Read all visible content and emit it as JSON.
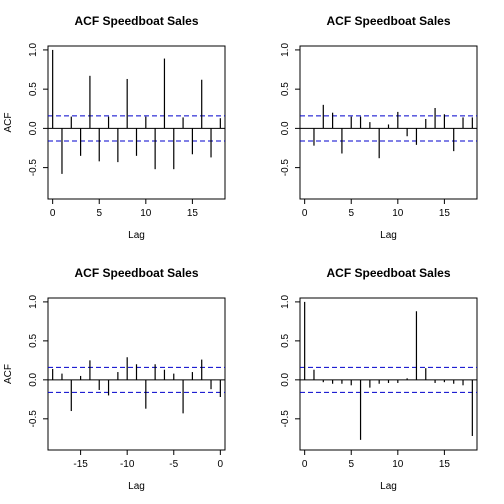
{
  "chart_data": [
    {
      "type": "bar",
      "title": "ACF Speedboat Sales",
      "xlabel": "Lag",
      "ylabel": "ACF",
      "xlim": [
        -0.5,
        18.5
      ],
      "ylim": [
        -0.9,
        1.05
      ],
      "xticks": [
        0,
        5,
        10,
        15
      ],
      "yticks": [
        -0.5,
        0.0,
        0.5,
        1.0
      ],
      "conf_limit": 0.16,
      "lags": [
        0,
        1,
        2,
        3,
        4,
        5,
        6,
        7,
        8,
        9,
        10,
        11,
        12,
        13,
        14,
        15,
        16,
        17,
        18
      ],
      "values": [
        1.0,
        -0.58,
        0.15,
        -0.35,
        0.67,
        -0.42,
        0.15,
        -0.43,
        0.63,
        -0.35,
        0.15,
        -0.52,
        0.89,
        -0.52,
        0.14,
        -0.33,
        0.62,
        -0.37,
        0.13
      ]
    },
    {
      "type": "bar",
      "title": "ACF Speedboat Sales",
      "xlabel": "Lag",
      "ylabel": "",
      "xlim": [
        -0.5,
        18.5
      ],
      "ylim": [
        -0.9,
        1.05
      ],
      "xticks": [
        0,
        5,
        10,
        15
      ],
      "yticks": [
        -0.5,
        0.0,
        0.5,
        1.0
      ],
      "conf_limit": 0.16,
      "lags": [
        1,
        2,
        3,
        4,
        5,
        6,
        7,
        8,
        9,
        10,
        11,
        12,
        13,
        14,
        15,
        16,
        17,
        18
      ],
      "values": [
        -0.22,
        0.3,
        0.2,
        -0.32,
        0.15,
        0.15,
        0.08,
        -0.38,
        0.05,
        0.21,
        -0.1,
        -0.21,
        0.12,
        0.26,
        0.18,
        -0.29,
        0.14,
        0.14
      ]
    },
    {
      "type": "bar",
      "title": "ACF Speedboat Sales",
      "xlabel": "Lag",
      "ylabel": "ACF",
      "xlim": [
        -18.5,
        0.5
      ],
      "ylim": [
        -0.9,
        1.05
      ],
      "xticks": [
        -15,
        -10,
        -5,
        0
      ],
      "yticks": [
        -0.5,
        0.0,
        0.5,
        1.0
      ],
      "conf_limit": 0.16,
      "lags": [
        -18,
        -17,
        -16,
        -15,
        -14,
        -13,
        -12,
        -11,
        -10,
        -9,
        -8,
        -7,
        -6,
        -5,
        -4,
        -3,
        -2,
        -1,
        0
      ],
      "values": [
        0.14,
        0.08,
        -0.4,
        0.05,
        0.25,
        -0.13,
        -0.2,
        0.1,
        0.29,
        0.2,
        -0.37,
        0.2,
        0.13,
        0.08,
        -0.43,
        0.1,
        0.26,
        -0.12,
        -0.22
      ]
    },
    {
      "type": "bar",
      "title": "ACF Speedboat Sales",
      "xlabel": "Lag",
      "ylabel": "",
      "xlim": [
        -0.5,
        18.5
      ],
      "ylim": [
        -0.9,
        1.05
      ],
      "xticks": [
        0,
        5,
        10,
        15
      ],
      "yticks": [
        -0.5,
        0.0,
        0.5,
        1.0
      ],
      "conf_limit": 0.16,
      "lags": [
        0,
        1,
        2,
        3,
        4,
        5,
        6,
        7,
        8,
        9,
        10,
        11,
        12,
        13,
        14,
        15,
        16,
        17,
        18
      ],
      "values": [
        1.0,
        0.13,
        -0.03,
        -0.05,
        -0.05,
        -0.07,
        -0.77,
        -0.1,
        -0.05,
        -0.04,
        -0.04,
        0.02,
        0.88,
        0.15,
        -0.04,
        -0.03,
        -0.05,
        -0.07,
        -0.72
      ]
    }
  ],
  "colors": {
    "bar": "#000000",
    "conf": "#0000cc",
    "frame": "#000000"
  }
}
